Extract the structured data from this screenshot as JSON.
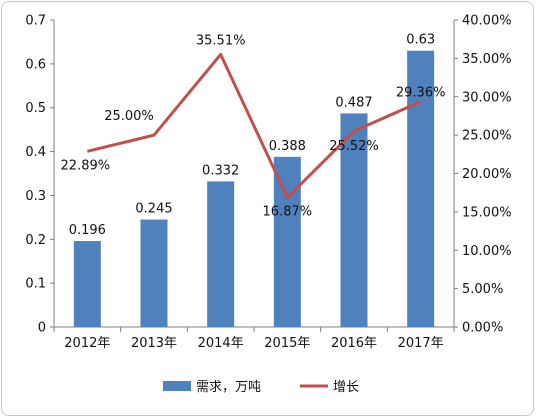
{
  "chart_data": {
    "type": "bar+line",
    "categories": [
      "2012年",
      "2013年",
      "2014年",
      "2015年",
      "2016年",
      "2017年"
    ],
    "series": [
      {
        "name": "需求，万吨",
        "type": "bar",
        "axis": "left",
        "values": [
          0.196,
          0.245,
          0.332,
          0.388,
          0.487,
          0.63
        ],
        "labels": [
          "0.196",
          "0.245",
          "0.332",
          "0.388",
          "0.487",
          "0.63"
        ],
        "color": "#4f81bd"
      },
      {
        "name": "增长",
        "type": "line",
        "axis": "right",
        "values": [
          22.89,
          25.0,
          35.51,
          16.87,
          25.52,
          29.36
        ],
        "labels": [
          "22.89%",
          "25.00%",
          "35.51%",
          "16.87%",
          "25.52%",
          "29.36%"
        ],
        "color": "#c0504d"
      }
    ],
    "y_left": {
      "range": [
        0,
        0.7
      ],
      "ticks": [
        "0",
        "0.1",
        "0.2",
        "0.3",
        "0.4",
        "0.5",
        "0.6",
        "0.7"
      ]
    },
    "y_right": {
      "range": [
        0,
        40
      ],
      "ticks": [
        "0.00%",
        "5.00%",
        "10.00%",
        "15.00%",
        "20.00%",
        "25.00%",
        "30.00%",
        "35.00%",
        "40.00%"
      ]
    },
    "grid": false,
    "legend": "bottom"
  }
}
